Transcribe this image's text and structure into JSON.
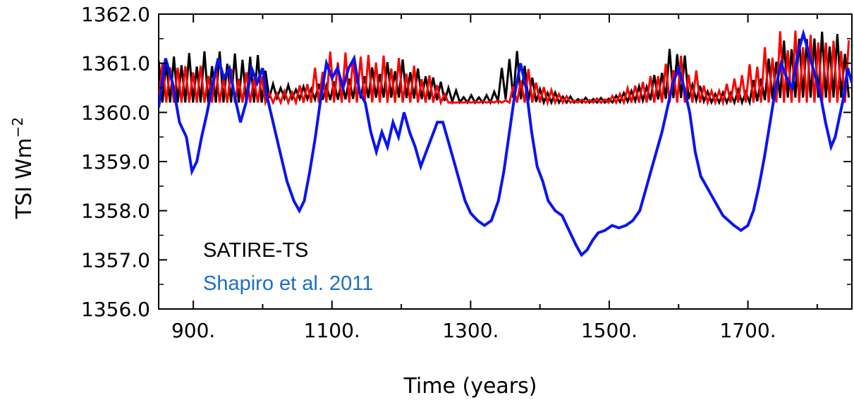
{
  "chart_data": {
    "type": "line",
    "title": "",
    "xlabel": "Time (years)",
    "ylabel_main": "TSI Wm",
    "ylabel_sup": "−2",
    "xlim": [
      850,
      1850
    ],
    "ylim": [
      1356.0,
      1362.0
    ],
    "x_ticks": [
      900,
      1100,
      1300,
      1500,
      1700
    ],
    "x_tick_labels": [
      "900.",
      "1100.",
      "1300.",
      "1500.",
      "1700."
    ],
    "y_ticks": [
      1356,
      1357,
      1358,
      1359,
      1360,
      1361,
      1362
    ],
    "y_tick_labels": [
      "1356.0",
      "1357.0",
      "1358.0",
      "1359.0",
      "1360.0",
      "1361.0",
      "1362.0"
    ],
    "legend": [
      {
        "label": "SATIRE-TS",
        "color": "#000000"
      },
      {
        "label": "Shapiro et al. 2011",
        "color": "#1a6fc4"
      }
    ],
    "series": [
      {
        "color": "#000000",
        "base": [
          [
            850,
            1360.2
          ],
          [
            1000,
            1360.2
          ],
          [
            1010,
            1360.3
          ],
          [
            1100,
            1360.25
          ],
          [
            1160,
            1360.3
          ],
          [
            1200,
            1360.3
          ],
          [
            1250,
            1360.25
          ],
          [
            1290,
            1360.2
          ],
          [
            1330,
            1360.2
          ],
          [
            1360,
            1360.3
          ],
          [
            1400,
            1360.2
          ],
          [
            1450,
            1360.2
          ],
          [
            1500,
            1360.2
          ],
          [
            1560,
            1360.25
          ],
          [
            1600,
            1360.3
          ],
          [
            1650,
            1360.2
          ],
          [
            1700,
            1360.2
          ],
          [
            1750,
            1360.3
          ],
          [
            1800,
            1360.3
          ],
          [
            1850,
            1360.3
          ]
        ],
        "amp": [
          [
            850,
            1.0
          ],
          [
            1000,
            1.1
          ],
          [
            1010,
            0.3
          ],
          [
            1060,
            0.25
          ],
          [
            1200,
            0.8
          ],
          [
            1250,
            0.5
          ],
          [
            1290,
            0.15
          ],
          [
            1330,
            0.15
          ],
          [
            1360,
            1.2
          ],
          [
            1380,
            0.8
          ],
          [
            1400,
            0.3
          ],
          [
            1450,
            0.1
          ],
          [
            1500,
            0.1
          ],
          [
            1560,
            0.4
          ],
          [
            1600,
            1.3
          ],
          [
            1620,
            0.4
          ],
          [
            1650,
            0.2
          ],
          [
            1700,
            0.3
          ],
          [
            1750,
            1.2
          ],
          [
            1800,
            1.5
          ],
          [
            1850,
            1.2
          ]
        ]
      },
      {
        "color": "#ff0000",
        "base": [
          [
            850,
            1360.2
          ],
          [
            1000,
            1360.2
          ],
          [
            1100,
            1360.2
          ],
          [
            1250,
            1360.2
          ],
          [
            1270,
            1360.2
          ],
          [
            1350,
            1360.2
          ],
          [
            1400,
            1360.2
          ],
          [
            1450,
            1360.2
          ],
          [
            1500,
            1360.2
          ],
          [
            1560,
            1360.2
          ],
          [
            1600,
            1360.2
          ],
          [
            1650,
            1360.2
          ],
          [
            1700,
            1360.2
          ],
          [
            1800,
            1360.2
          ],
          [
            1850,
            1360.2
          ]
        ],
        "amp": [
          [
            850,
            0.9
          ],
          [
            1000,
            0.6
          ],
          [
            1010,
            0.2
          ],
          [
            1050,
            0.3
          ],
          [
            1100,
            1.1
          ],
          [
            1150,
            1.1
          ],
          [
            1200,
            0.9
          ],
          [
            1250,
            0.5
          ],
          [
            1270,
            0.0
          ],
          [
            1350,
            0.05
          ],
          [
            1380,
            0.8
          ],
          [
            1400,
            0.4
          ],
          [
            1430,
            0.2
          ],
          [
            1450,
            0.05
          ],
          [
            1500,
            0.1
          ],
          [
            1560,
            0.6
          ],
          [
            1600,
            1.0
          ],
          [
            1630,
            0.6
          ],
          [
            1650,
            0.2
          ],
          [
            1700,
            0.8
          ],
          [
            1750,
            1.5
          ],
          [
            1800,
            1.5
          ],
          [
            1850,
            1.3
          ]
        ]
      },
      {
        "color": "#0a14f0",
        "points": [
          [
            850,
            1360.1
          ],
          [
            860,
            1361.1
          ],
          [
            870,
            1360.6
          ],
          [
            880,
            1359.8
          ],
          [
            890,
            1359.5
          ],
          [
            898,
            1358.8
          ],
          [
            905,
            1359.0
          ],
          [
            912,
            1359.5
          ],
          [
            920,
            1360.0
          ],
          [
            928,
            1360.6
          ],
          [
            936,
            1361.1
          ],
          [
            944,
            1360.7
          ],
          [
            952,
            1360.9
          ],
          [
            960,
            1360.3
          ],
          [
            968,
            1359.8
          ],
          [
            976,
            1360.2
          ],
          [
            984,
            1360.9
          ],
          [
            992,
            1360.6
          ],
          [
            1000,
            1360.9
          ],
          [
            1005,
            1360.4
          ],
          [
            1015,
            1359.8
          ],
          [
            1025,
            1359.2
          ],
          [
            1035,
            1358.6
          ],
          [
            1045,
            1358.2
          ],
          [
            1053,
            1358.0
          ],
          [
            1060,
            1358.2
          ],
          [
            1068,
            1358.8
          ],
          [
            1076,
            1359.5
          ],
          [
            1084,
            1360.3
          ],
          [
            1092,
            1361.0
          ],
          [
            1100,
            1360.7
          ],
          [
            1108,
            1360.9
          ],
          [
            1116,
            1360.5
          ],
          [
            1124,
            1360.9
          ],
          [
            1132,
            1361.1
          ],
          [
            1140,
            1360.4
          ],
          [
            1148,
            1360.2
          ],
          [
            1156,
            1359.6
          ],
          [
            1164,
            1359.2
          ],
          [
            1172,
            1359.6
          ],
          [
            1180,
            1359.3
          ],
          [
            1188,
            1359.8
          ],
          [
            1196,
            1359.5
          ],
          [
            1204,
            1360.0
          ],
          [
            1212,
            1359.6
          ],
          [
            1220,
            1359.3
          ],
          [
            1228,
            1358.9
          ],
          [
            1236,
            1359.2
          ],
          [
            1244,
            1359.5
          ],
          [
            1252,
            1359.8
          ],
          [
            1260,
            1359.8
          ],
          [
            1268,
            1359.4
          ],
          [
            1276,
            1359.0
          ],
          [
            1284,
            1358.6
          ],
          [
            1292,
            1358.2
          ],
          [
            1300,
            1357.95
          ],
          [
            1310,
            1357.8
          ],
          [
            1320,
            1357.7
          ],
          [
            1330,
            1357.8
          ],
          [
            1340,
            1358.2
          ],
          [
            1348,
            1358.8
          ],
          [
            1356,
            1359.6
          ],
          [
            1364,
            1360.4
          ],
          [
            1372,
            1361.0
          ],
          [
            1380,
            1360.5
          ],
          [
            1388,
            1359.6
          ],
          [
            1396,
            1358.9
          ],
          [
            1404,
            1358.6
          ],
          [
            1412,
            1358.2
          ],
          [
            1422,
            1358.0
          ],
          [
            1432,
            1357.9
          ],
          [
            1442,
            1357.6
          ],
          [
            1452,
            1357.3
          ],
          [
            1460,
            1357.1
          ],
          [
            1468,
            1357.2
          ],
          [
            1476,
            1357.4
          ],
          [
            1484,
            1357.55
          ],
          [
            1494,
            1357.6
          ],
          [
            1504,
            1357.7
          ],
          [
            1514,
            1357.65
          ],
          [
            1524,
            1357.7
          ],
          [
            1534,
            1357.8
          ],
          [
            1544,
            1358.0
          ],
          [
            1552,
            1358.4
          ],
          [
            1560,
            1358.8
          ],
          [
            1568,
            1359.2
          ],
          [
            1576,
            1359.6
          ],
          [
            1584,
            1360.1
          ],
          [
            1592,
            1360.6
          ],
          [
            1600,
            1360.9
          ],
          [
            1608,
            1360.5
          ],
          [
            1616,
            1360.0
          ],
          [
            1624,
            1359.2
          ],
          [
            1632,
            1358.7
          ],
          [
            1640,
            1358.5
          ],
          [
            1648,
            1358.3
          ],
          [
            1656,
            1358.1
          ],
          [
            1664,
            1357.9
          ],
          [
            1672,
            1357.8
          ],
          [
            1680,
            1357.7
          ],
          [
            1690,
            1357.6
          ],
          [
            1700,
            1357.7
          ],
          [
            1708,
            1358.0
          ],
          [
            1716,
            1358.5
          ],
          [
            1724,
            1359.1
          ],
          [
            1732,
            1359.8
          ],
          [
            1740,
            1360.5
          ],
          [
            1748,
            1361.0
          ],
          [
            1756,
            1360.7
          ],
          [
            1764,
            1360.5
          ],
          [
            1772,
            1361.2
          ],
          [
            1780,
            1361.6
          ],
          [
            1788,
            1361.2
          ],
          [
            1796,
            1360.8
          ],
          [
            1804,
            1360.4
          ],
          [
            1812,
            1359.8
          ],
          [
            1820,
            1359.3
          ],
          [
            1826,
            1359.5
          ],
          [
            1832,
            1359.9
          ],
          [
            1838,
            1360.3
          ],
          [
            1844,
            1360.9
          ],
          [
            1850,
            1360.6
          ]
        ]
      }
    ]
  }
}
